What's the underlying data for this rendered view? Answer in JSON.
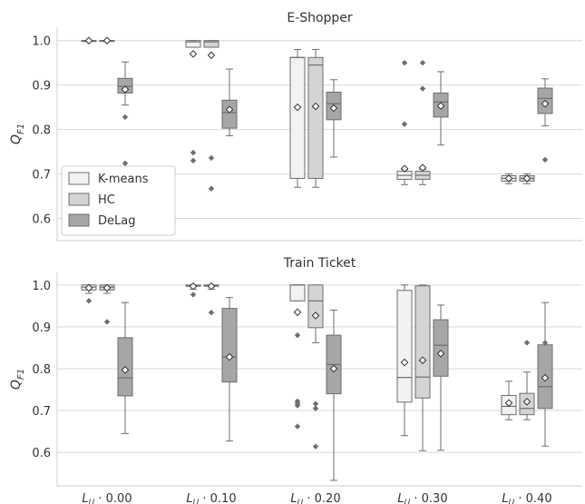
{
  "chart_data": [
    {
      "type": "box",
      "title": "E-Shopper",
      "ylabel": "Q_F1",
      "ylim": [
        0.55,
        1.03
      ],
      "yticks": [
        0.6,
        0.7,
        0.8,
        0.9,
        1.0
      ],
      "ytick_labels": [
        "0.6",
        "0.7",
        "0.8",
        "0.9",
        "1.0"
      ],
      "grid": "horizontal",
      "legend_position": "lower-left",
      "categories": [
        "L_U · 0.00",
        "L_U · 0.10",
        "L_U · 0.20",
        "L_U · 0.30",
        "L_U · 0.40"
      ],
      "category_labels": [
        "0.00",
        "0.10",
        "0.20",
        "0.30",
        "0.40"
      ],
      "series": [
        {
          "name": "K-means",
          "color": "#f2f2f2",
          "boxes": [
            {
              "whislo": 1.0,
              "q1": 1.0,
              "med": 1.0,
              "q3": 1.0,
              "whishi": 1.0,
              "mean": 1.0,
              "fliers": []
            },
            {
              "whislo": 0.985,
              "q1": 0.985,
              "med": 0.997,
              "q3": 1.0,
              "whishi": 1.0,
              "mean": 0.97,
              "fliers": [
                0.748,
                0.73
              ]
            },
            {
              "whislo": 0.67,
              "q1": 0.69,
              "med": 0.962,
              "q3": 0.962,
              "whishi": 0.98,
              "mean": 0.85,
              "fliers": []
            },
            {
              "whislo": 0.676,
              "q1": 0.688,
              "med": 0.697,
              "q3": 0.706,
              "whishi": 0.71,
              "mean": 0.712,
              "fliers": [
                0.95,
                0.812
              ]
            },
            {
              "whislo": 0.678,
              "q1": 0.684,
              "med": 0.69,
              "q3": 0.696,
              "whishi": 0.7,
              "mean": 0.69,
              "fliers": []
            }
          ]
        },
        {
          "name": "HC",
          "color": "#d4d4d4",
          "boxes": [
            {
              "whislo": 1.0,
              "q1": 1.0,
              "med": 1.0,
              "q3": 1.0,
              "whishi": 1.0,
              "mean": 1.0,
              "fliers": []
            },
            {
              "whislo": 0.985,
              "q1": 0.985,
              "med": 0.997,
              "q3": 1.0,
              "whishi": 1.0,
              "mean": 0.967,
              "fliers": [
                0.736,
                0.667
              ]
            },
            {
              "whislo": 0.67,
              "q1": 0.69,
              "med": 0.945,
              "q3": 0.962,
              "whishi": 0.98,
              "mean": 0.852,
              "fliers": []
            },
            {
              "whislo": 0.676,
              "q1": 0.688,
              "med": 0.697,
              "q3": 0.706,
              "whishi": 0.71,
              "mean": 0.714,
              "fliers": [
                0.95,
                0.892
              ]
            },
            {
              "whislo": 0.678,
              "q1": 0.684,
              "med": 0.69,
              "q3": 0.696,
              "whishi": 0.7,
              "mean": 0.69,
              "fliers": []
            }
          ]
        },
        {
          "name": "DeLag",
          "color": "#a6a6a6",
          "boxes": [
            {
              "whislo": 0.855,
              "q1": 0.882,
              "med": 0.897,
              "q3": 0.915,
              "whishi": 0.952,
              "mean": 0.89,
              "fliers": [
                0.828,
                0.724
              ]
            },
            {
              "whislo": 0.786,
              "q1": 0.803,
              "med": 0.838,
              "q3": 0.866,
              "whishi": 0.936,
              "mean": 0.845,
              "fliers": []
            },
            {
              "whislo": 0.738,
              "q1": 0.822,
              "med": 0.858,
              "q3": 0.884,
              "whishi": 0.912,
              "mean": 0.848,
              "fliers": []
            },
            {
              "whislo": 0.765,
              "q1": 0.828,
              "med": 0.862,
              "q3": 0.882,
              "whishi": 0.93,
              "mean": 0.853,
              "fliers": []
            },
            {
              "whislo": 0.808,
              "q1": 0.836,
              "med": 0.87,
              "q3": 0.893,
              "whishi": 0.914,
              "mean": 0.858,
              "fliers": [
                0.732
              ]
            }
          ]
        }
      ]
    },
    {
      "type": "box",
      "title": "Train Ticket",
      "ylabel": "Q_F1",
      "ylim": [
        0.52,
        1.03
      ],
      "yticks": [
        0.6,
        0.7,
        0.8,
        0.9,
        1.0
      ],
      "ytick_labels": [
        "0.6",
        "0.7",
        "0.8",
        "0.9",
        "1.0"
      ],
      "grid": "horizontal",
      "categories": [
        "L_U · 0.00",
        "L_U · 0.10",
        "L_U · 0.20",
        "L_U · 0.30",
        "L_U · 0.40"
      ],
      "category_labels": [
        "0.00",
        "0.10",
        "0.20",
        "0.30",
        "0.40"
      ],
      "series": [
        {
          "name": "K-means",
          "color": "#f2f2f2",
          "boxes": [
            {
              "whislo": 0.98,
              "q1": 0.988,
              "med": 0.995,
              "q3": 1.0,
              "whishi": 1.0,
              "mean": 0.993,
              "fliers": [
                0.962
              ]
            },
            {
              "whislo": 0.99,
              "q1": 0.997,
              "med": 0.999,
              "q3": 1.0,
              "whishi": 1.0,
              "mean": 0.997,
              "fliers": [
                0.977
              ]
            },
            {
              "whislo": 0.962,
              "q1": 0.962,
              "med": 1.0,
              "q3": 1.0,
              "whishi": 1.0,
              "mean": 0.935,
              "fliers": [
                0.88,
                0.722,
                0.717,
                0.712,
                0.662
              ]
            },
            {
              "whislo": 0.64,
              "q1": 0.72,
              "med": 0.779,
              "q3": 0.987,
              "whishi": 1.0,
              "mean": 0.815,
              "fliers": []
            },
            {
              "whislo": 0.678,
              "q1": 0.69,
              "med": 0.71,
              "q3": 0.736,
              "whishi": 0.77,
              "mean": 0.718,
              "fliers": []
            }
          ]
        },
        {
          "name": "HC",
          "color": "#d4d4d4",
          "boxes": [
            {
              "whislo": 0.98,
              "q1": 0.988,
              "med": 0.995,
              "q3": 1.0,
              "whishi": 1.0,
              "mean": 0.993,
              "fliers": [
                0.912
              ]
            },
            {
              "whislo": 0.99,
              "q1": 0.997,
              "med": 0.999,
              "q3": 1.0,
              "whishi": 1.0,
              "mean": 0.997,
              "fliers": [
                0.934
              ]
            },
            {
              "whislo": 0.862,
              "q1": 0.898,
              "med": 0.962,
              "q3": 1.0,
              "whishi": 1.0,
              "mean": 0.927,
              "fliers": [
                0.716,
                0.705,
                0.614
              ]
            },
            {
              "whislo": 0.604,
              "q1": 0.73,
              "med": 0.78,
              "q3": 0.998,
              "whishi": 1.0,
              "mean": 0.82,
              "fliers": []
            },
            {
              "whislo": 0.678,
              "q1": 0.69,
              "med": 0.705,
              "q3": 0.741,
              "whishi": 0.792,
              "mean": 0.721,
              "fliers": [
                0.862
              ]
            }
          ]
        },
        {
          "name": "DeLag",
          "color": "#a6a6a6",
          "boxes": [
            {
              "whislo": 0.645,
              "q1": 0.735,
              "med": 0.778,
              "q3": 0.874,
              "whishi": 0.958,
              "mean": 0.797,
              "fliers": []
            },
            {
              "whislo": 0.627,
              "q1": 0.768,
              "med": 0.828,
              "q3": 0.944,
              "whishi": 0.97,
              "mean": 0.828,
              "fliers": []
            },
            {
              "whislo": 0.533,
              "q1": 0.74,
              "med": 0.81,
              "q3": 0.88,
              "whishi": 0.94,
              "mean": 0.8,
              "fliers": []
            },
            {
              "whislo": 0.605,
              "q1": 0.782,
              "med": 0.856,
              "q3": 0.917,
              "whishi": 0.952,
              "mean": 0.836,
              "fliers": []
            },
            {
              "whislo": 0.615,
              "q1": 0.705,
              "med": 0.757,
              "q3": 0.857,
              "whishi": 0.958,
              "mean": 0.778,
              "fliers": [
                0.862
              ]
            }
          ]
        }
      ]
    }
  ]
}
